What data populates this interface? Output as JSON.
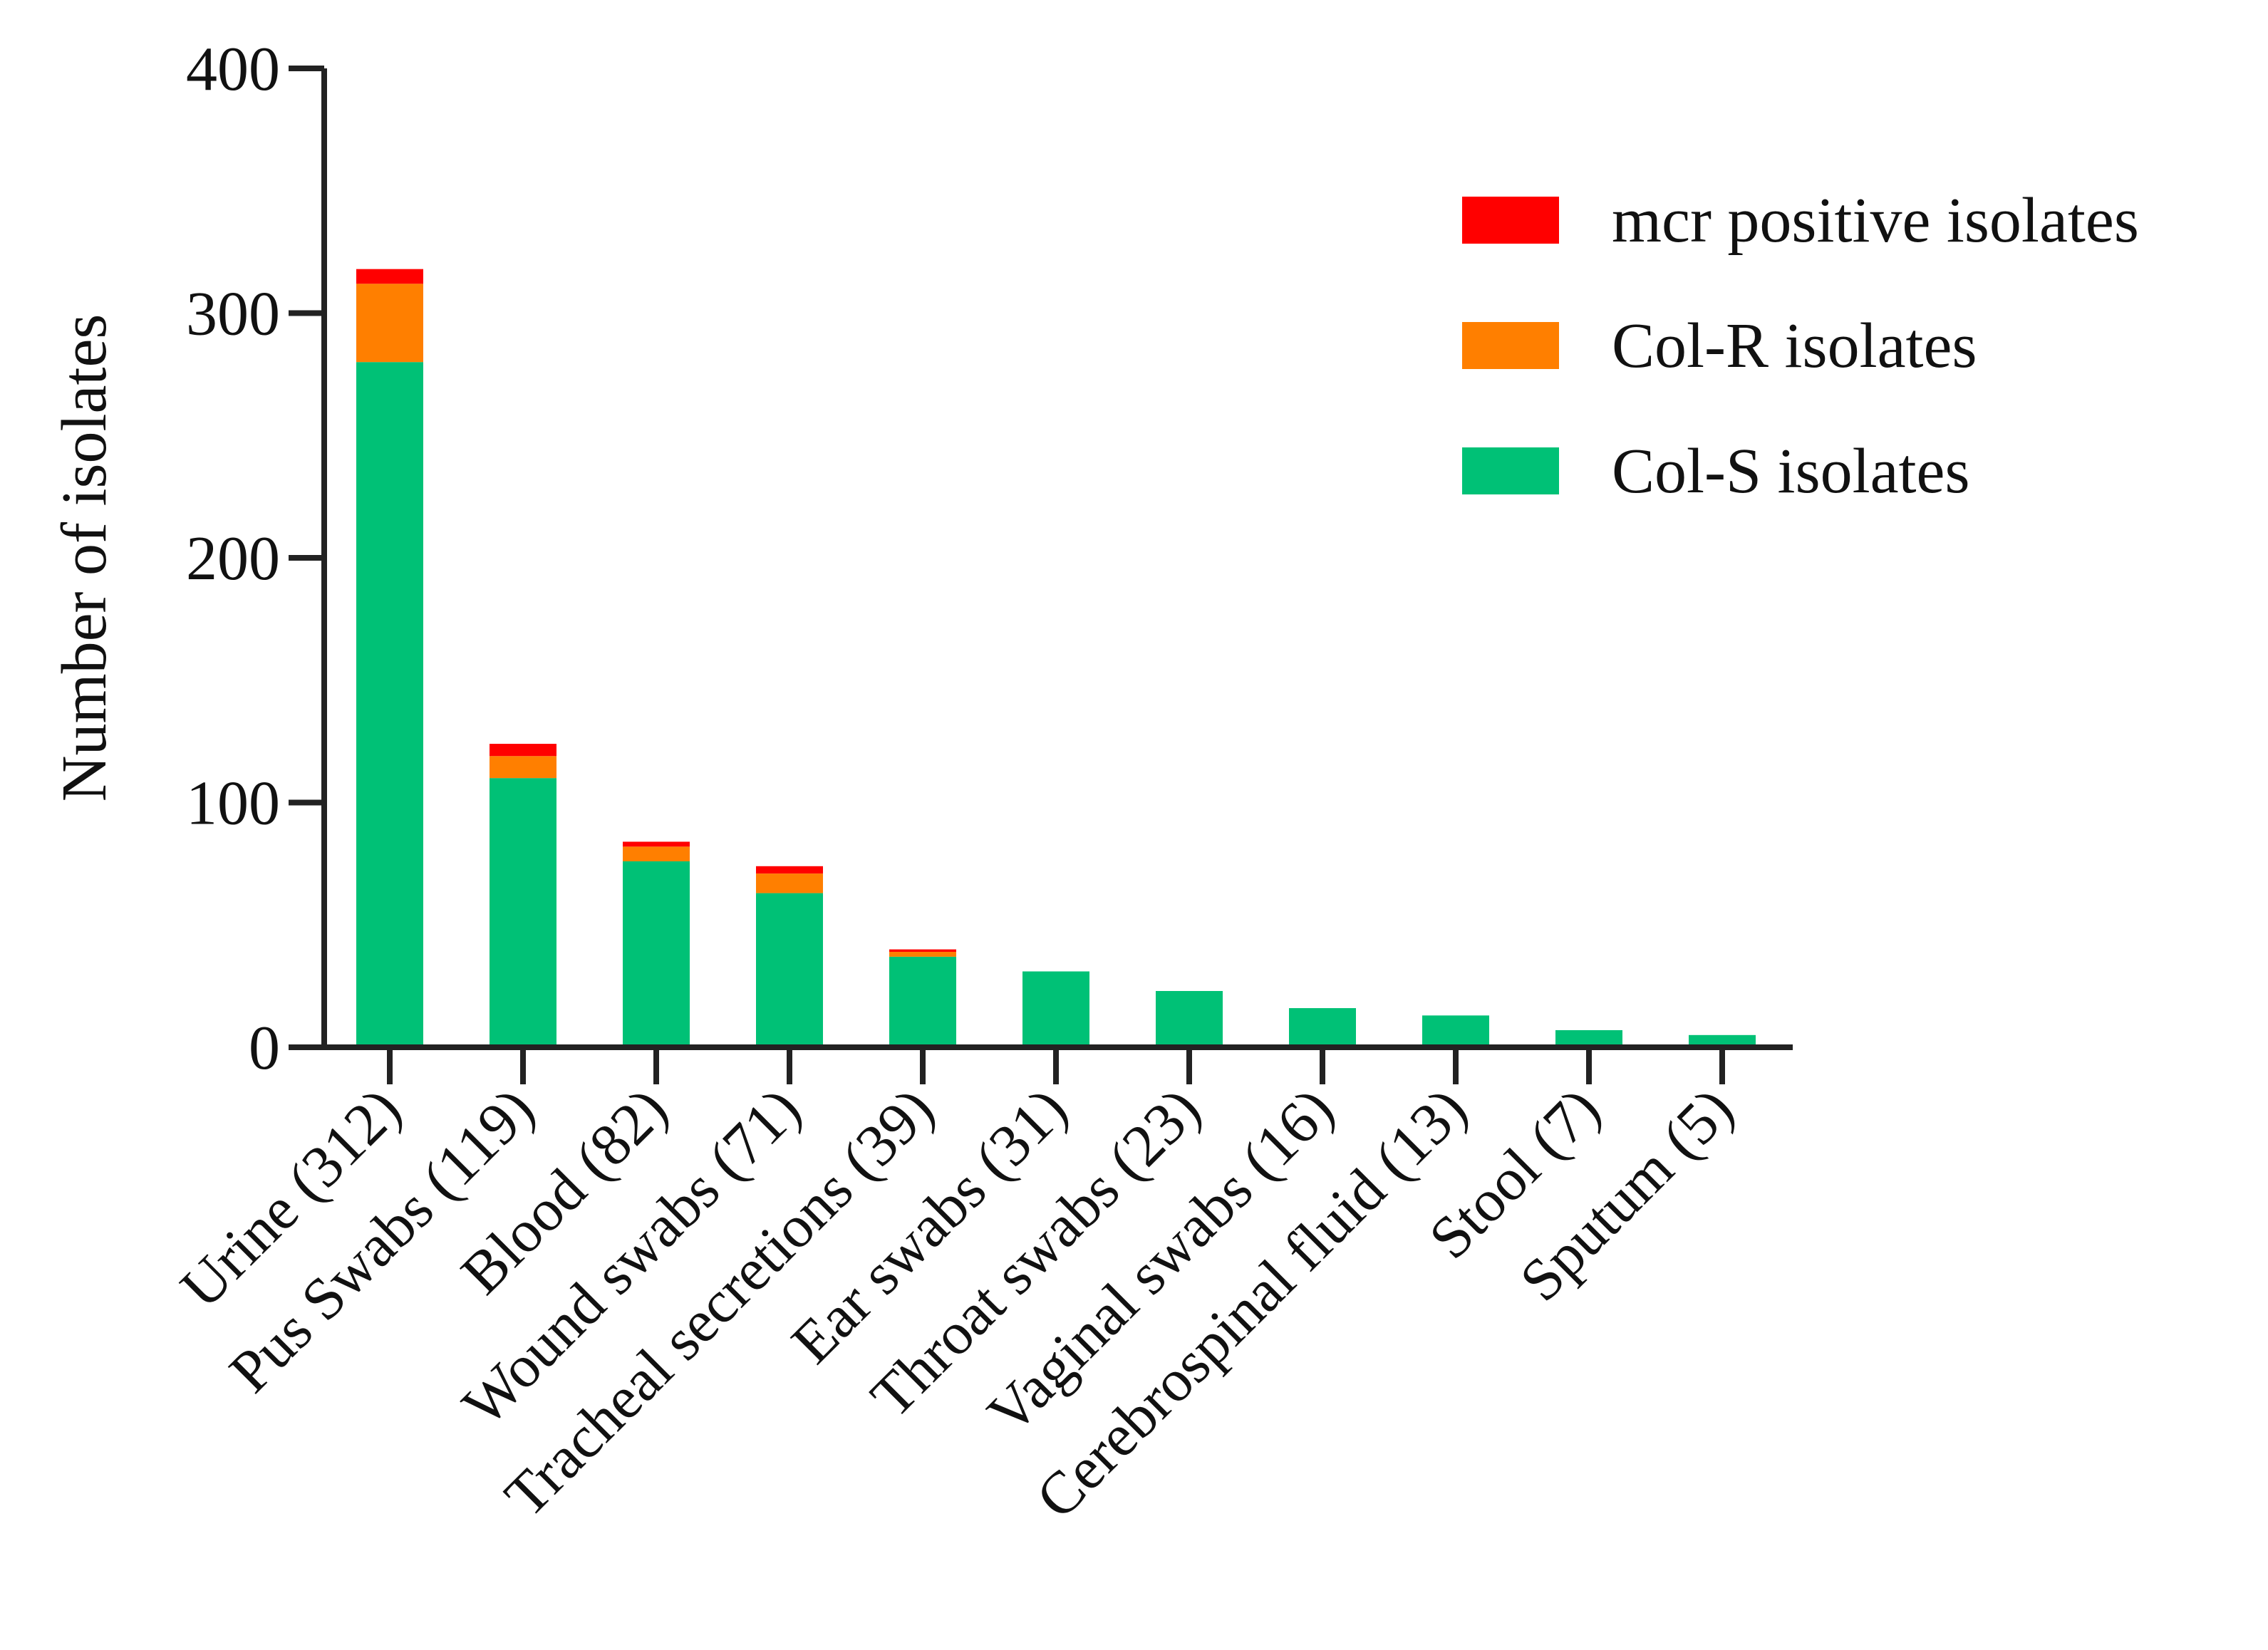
{
  "chart_data": {
    "type": "bar",
    "stacked": true,
    "title": "",
    "xlabel": "",
    "ylabel": "Number of isolates",
    "ylim": [
      0,
      400
    ],
    "yticks": [
      0,
      100,
      200,
      300,
      400
    ],
    "categories": [
      "Urine (312)",
      "Pus Swabs (119)",
      "Blood (82)",
      "Wound swabs (71)",
      "Tracheal secretions (39)",
      "Ear swabs (31)",
      "Throat swabs (23)",
      "Vaginal swabs (16)",
      "Cerebrospinal fluid (13)",
      "Stool (7)",
      "Sputum (5)"
    ],
    "series": [
      {
        "name": "Col-S isolates",
        "color": "#00c176",
        "values": [
          280,
          110,
          76,
          63,
          37,
          31,
          23,
          16,
          13,
          7,
          5
        ]
      },
      {
        "name": "Col-R isolates",
        "color": "#ff7f00",
        "values": [
          32,
          9,
          6,
          8,
          2,
          0,
          0,
          0,
          0,
          0,
          0
        ]
      },
      {
        "name": "mcr positive isolates",
        "color": "#ff0000",
        "values": [
          6,
          5,
          2,
          3,
          1,
          0,
          0,
          0,
          0,
          0,
          0
        ]
      }
    ],
    "legend": {
      "position": "top-right",
      "order": [
        "mcr positive isolates",
        "Col-R isolates",
        "Col-S isolates"
      ]
    },
    "grid": false
  }
}
